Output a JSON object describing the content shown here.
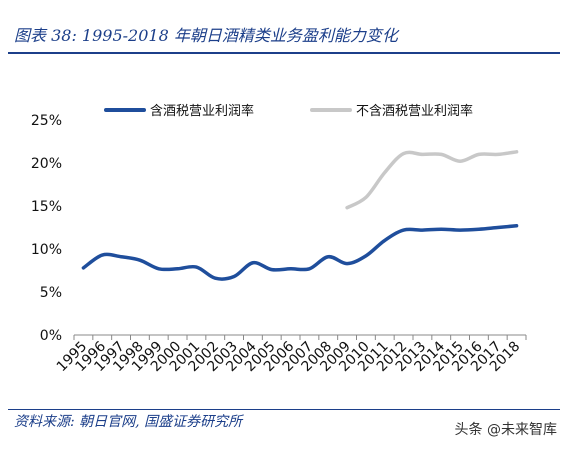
{
  "figure": {
    "title": "图表 38:  1995-2018 年朝日酒精类业务盈利能力变化",
    "source": "资料来源: 朝日官网,  国盛证券研究所",
    "watermark": "头条 @未来智库"
  },
  "colors": {
    "frame": "#1c3f8a",
    "series_with_tax": "#1f4e9c",
    "series_without_tax": "#c8c8c8"
  },
  "chart_data": {
    "type": "line",
    "x": [
      "1995",
      "1996",
      "1997",
      "1998",
      "1999",
      "2000",
      "2001",
      "2002",
      "2003",
      "2004",
      "2005",
      "2006",
      "2007",
      "2008",
      "2009",
      "2010",
      "2011",
      "2012",
      "2013",
      "2014",
      "2015",
      "2016",
      "2017",
      "2018"
    ],
    "series": [
      {
        "name": "含酒税营业利润率",
        "values": [
          7.8,
          9.3,
          9.1,
          8.7,
          7.7,
          7.7,
          7.9,
          6.6,
          6.8,
          8.4,
          7.6,
          7.7,
          7.7,
          9.1,
          8.3,
          9.2,
          11.0,
          12.2,
          12.2,
          12.3,
          12.2,
          12.3,
          12.5,
          12.7
        ]
      },
      {
        "name": "不含酒税营业利润率",
        "values": [
          null,
          null,
          null,
          null,
          null,
          null,
          null,
          null,
          null,
          null,
          null,
          null,
          null,
          null,
          14.8,
          16.0,
          18.9,
          21.1,
          21.0,
          21.0,
          20.2,
          21.0,
          21.0,
          21.3
        ]
      }
    ],
    "ylim": [
      0,
      25
    ],
    "yticks": [
      "0%",
      "5%",
      "10%",
      "15%",
      "20%",
      "25%"
    ],
    "xlabel": "",
    "ylabel": "",
    "grid": false,
    "legend": "top"
  }
}
